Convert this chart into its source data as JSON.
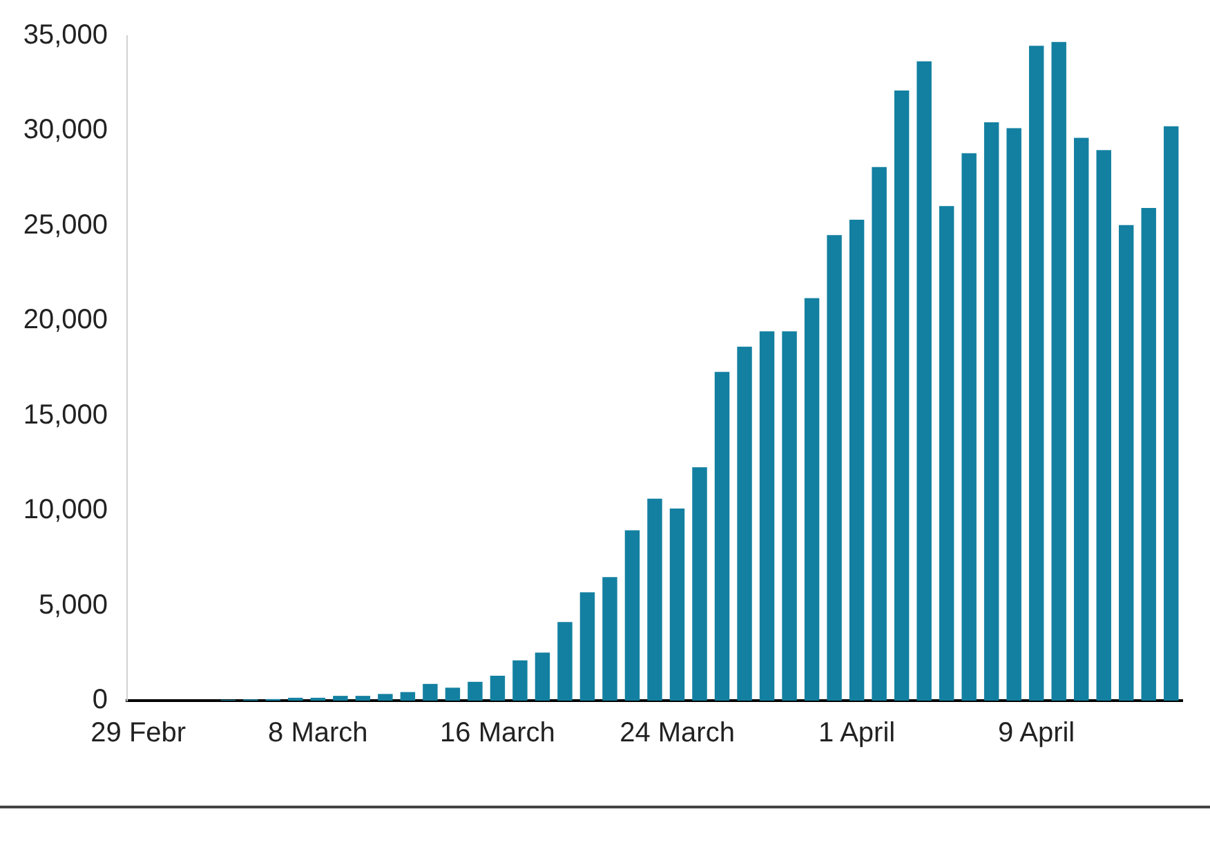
{
  "chart_data": {
    "type": "bar",
    "categories": [
      "29 Febr",
      null,
      null,
      null,
      null,
      null,
      null,
      null,
      "8 March",
      null,
      null,
      null,
      null,
      null,
      null,
      null,
      "16 March",
      null,
      null,
      null,
      null,
      null,
      null,
      null,
      "24 March",
      null,
      null,
      null,
      null,
      null,
      null,
      null,
      "1 April",
      null,
      null,
      null,
      null,
      null,
      null,
      null,
      "9 April",
      null,
      null,
      null,
      null,
      null,
      null
    ],
    "values": [
      0,
      0,
      0,
      0,
      40,
      60,
      80,
      150,
      150,
      250,
      250,
      350,
      450,
      880,
      680,
      990,
      1310,
      2120,
      2530,
      4140,
      5700,
      6500,
      8970,
      10630,
      10110,
      12290,
      17310,
      18640,
      19450,
      19450,
      21190,
      24510,
      25320,
      28100,
      32130,
      33660,
      26040,
      28820,
      30450,
      30140,
      34480,
      34680,
      29630,
      28990,
      25040,
      25940,
      30240
    ],
    "color": "#1380a1",
    "ylim": [
      0,
      35000
    ],
    "yticks": [
      {
        "value": 0,
        "label": "0"
      },
      {
        "value": 5000,
        "label": "5,000"
      },
      {
        "value": 10000,
        "label": "10,000"
      },
      {
        "value": 15000,
        "label": "15,000"
      },
      {
        "value": 20000,
        "label": "20,000"
      },
      {
        "value": 25000,
        "label": "25,000"
      },
      {
        "value": 30000,
        "label": "30,000"
      },
      {
        "value": 35000,
        "label": "35,000"
      }
    ],
    "grid": false,
    "legend": false
  }
}
